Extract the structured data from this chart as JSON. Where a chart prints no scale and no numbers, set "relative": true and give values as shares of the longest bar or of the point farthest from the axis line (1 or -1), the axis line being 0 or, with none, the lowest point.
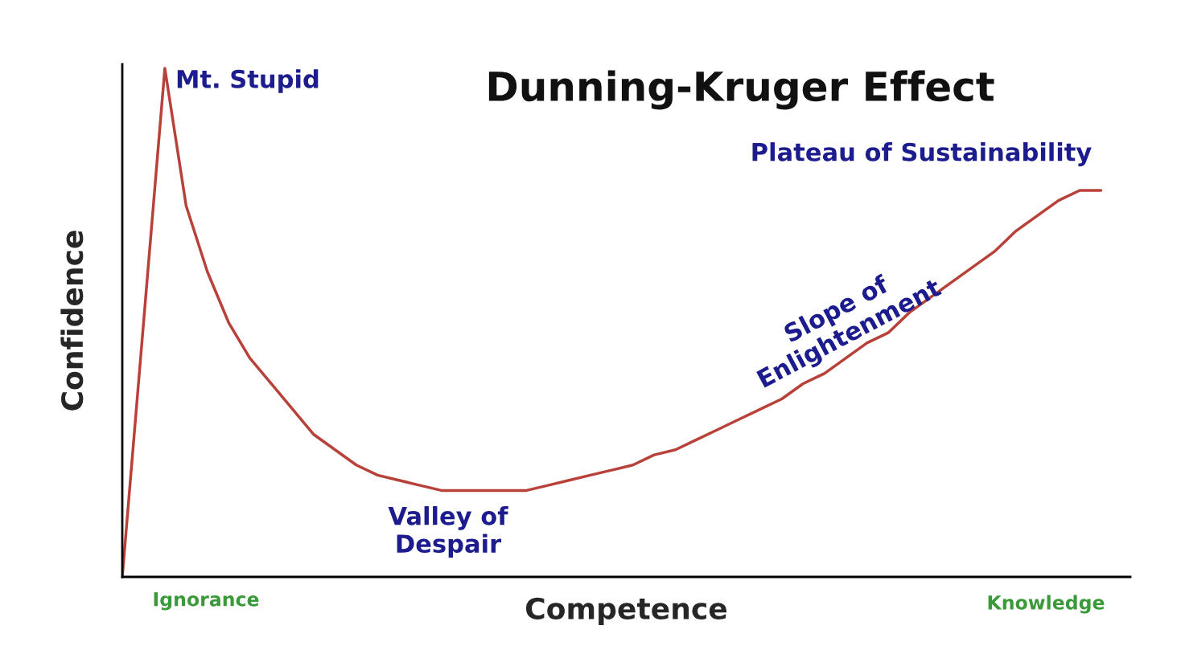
{
  "chart_data": {
    "type": "line",
    "relative": true,
    "title": "Dunning-Kruger Effect",
    "xlabel": "Competence",
    "ylabel": "Confidence",
    "categories": [
      null,
      null,
      null,
      null,
      null,
      null,
      null,
      null,
      null,
      null,
      null,
      null,
      null,
      null,
      null,
      null,
      null,
      null,
      null,
      null,
      null,
      null,
      null,
      null,
      null,
      null,
      null,
      null,
      null,
      null,
      null,
      null,
      null,
      null,
      null,
      null,
      null,
      null,
      null,
      null,
      null,
      null,
      null,
      null,
      null,
      null,
      null
    ],
    "series": [
      {
        "color": "#b8413a",
        "values": [
          0,
          0.5,
          1.0,
          0.73,
          0.6,
          0.5,
          0.43,
          0.38,
          0.33,
          0.28,
          0.25,
          0.22,
          0.2,
          0.19,
          0.18,
          0.17,
          0.17,
          0.17,
          0.17,
          0.17,
          0.18,
          0.19,
          0.2,
          0.21,
          0.22,
          0.24,
          0.25,
          0.27,
          0.29,
          0.31,
          0.33,
          0.35,
          0.38,
          0.4,
          0.43,
          0.46,
          0.48,
          0.52,
          0.55,
          0.58,
          0.61,
          0.64,
          0.68,
          0.71,
          0.74,
          0.76,
          0.76
        ]
      }
    ],
    "annotations": [
      "Mt. Stupid",
      "Valley of\nDespair",
      "Slope of\nEnlightenment",
      "Plateau of Sustainability",
      "Ignorance",
      "Knowledge"
    ],
    "marker": "none"
  }
}
